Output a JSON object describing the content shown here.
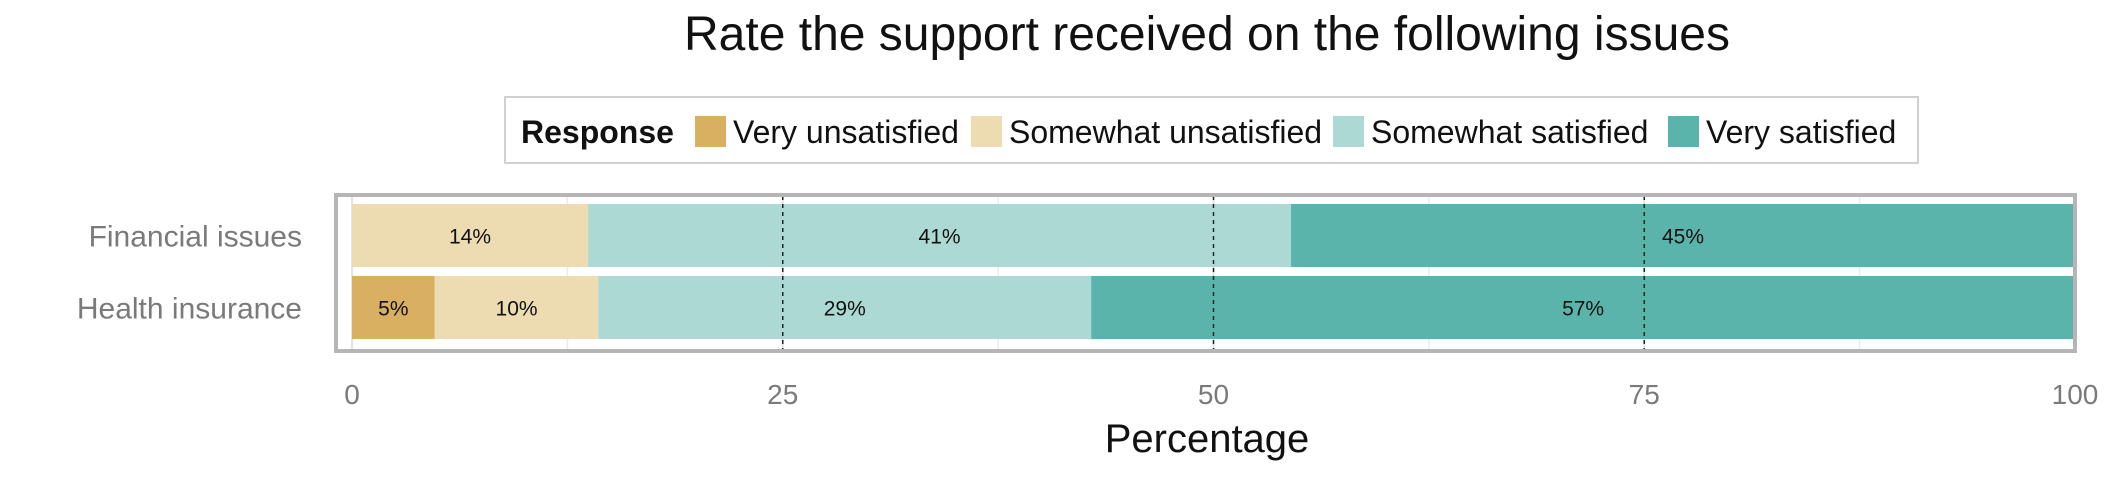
{
  "chart_data": {
    "type": "bar",
    "orientation": "horizontal",
    "stacked": true,
    "title": "Rate the support received on the following issues",
    "xlabel": "Percentage",
    "ylabel": "",
    "xlim": [
      0,
      100
    ],
    "xticks": [
      0,
      25,
      50,
      75,
      100
    ],
    "grid": true,
    "reference_lines": [
      25,
      50,
      75
    ],
    "legend": {
      "title": "Response",
      "position": "top",
      "entries": [
        "Very unsatisfied",
        "Somewhat unsatisfied",
        "Somewhat satisfied",
        "Very satisfied"
      ]
    },
    "categories": [
      "Financial issues",
      "Health insurance"
    ],
    "series": [
      {
        "name": "Very unsatisfied",
        "color": "#d9b061",
        "values": [
          0,
          4.8
        ],
        "labels": [
          "",
          "5%"
        ]
      },
      {
        "name": "Somewhat unsatisfied",
        "color": "#eddbb2",
        "values": [
          13.7,
          9.5
        ],
        "labels": [
          "14%",
          "10%"
        ]
      },
      {
        "name": "Somewhat satisfied",
        "color": "#acd9d4",
        "values": [
          40.8,
          28.6
        ],
        "labels": [
          "41%",
          "29%"
        ]
      },
      {
        "name": "Very satisfied",
        "color": "#5ab4ab",
        "values": [
          45.5,
          57.1
        ],
        "labels": [
          "45%",
          "57%"
        ]
      }
    ]
  }
}
